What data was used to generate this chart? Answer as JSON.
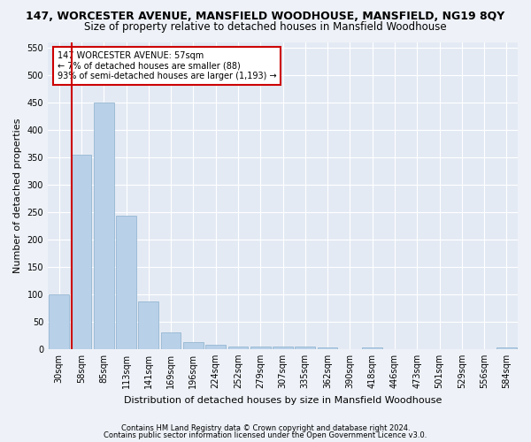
{
  "title": "147, WORCESTER AVENUE, MANSFIELD WOODHOUSE, MANSFIELD, NG19 8QY",
  "subtitle": "Size of property relative to detached houses in Mansfield Woodhouse",
  "xlabel": "Distribution of detached houses by size in Mansfield Woodhouse",
  "ylabel": "Number of detached properties",
  "categories": [
    "30sqm",
    "58sqm",
    "85sqm",
    "113sqm",
    "141sqm",
    "169sqm",
    "196sqm",
    "224sqm",
    "252sqm",
    "279sqm",
    "307sqm",
    "335sqm",
    "362sqm",
    "390sqm",
    "418sqm",
    "446sqm",
    "473sqm",
    "501sqm",
    "529sqm",
    "556sqm",
    "584sqm"
  ],
  "values": [
    100,
    355,
    450,
    243,
    87,
    30,
    13,
    8,
    5,
    4,
    4,
    4,
    3,
    0,
    3,
    0,
    0,
    0,
    0,
    0,
    3
  ],
  "bar_color": "#b8d0e8",
  "bar_edge_color": "#8ab0cc",
  "property_line_color": "#cc0000",
  "ylim": [
    0,
    560
  ],
  "yticks": [
    0,
    50,
    100,
    150,
    200,
    250,
    300,
    350,
    400,
    450,
    500,
    550
  ],
  "annotation_line1": "147 WORCESTER AVENUE: 57sqm",
  "annotation_line2": "← 7% of detached houses are smaller (88)",
  "annotation_line3": "93% of semi-detached houses are larger (1,193) →",
  "annotation_box_color": "#ffffff",
  "annotation_box_edge_color": "#cc0000",
  "footer1": "Contains HM Land Registry data © Crown copyright and database right 2024.",
  "footer2": "Contains public sector information licensed under the Open Government Licence v3.0.",
  "bg_color": "#eef2f8",
  "plot_bg_color": "#e4eaf4",
  "grid_color": "#ffffff",
  "title_fontsize": 9,
  "subtitle_fontsize": 8.5,
  "tick_fontsize": 7,
  "label_fontsize": 8,
  "footer_fontsize": 6
}
